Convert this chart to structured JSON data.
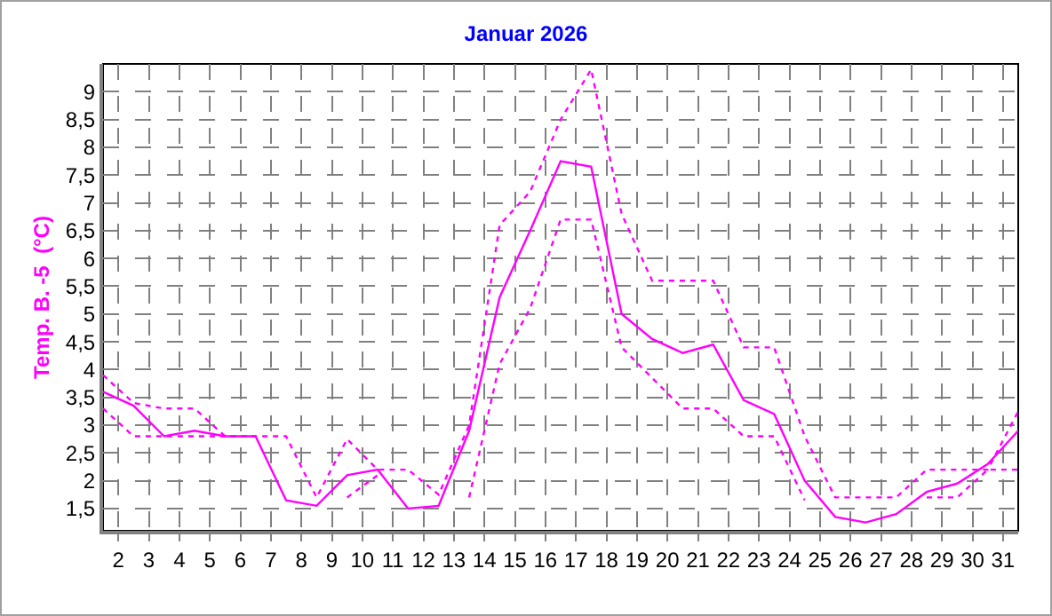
{
  "chart_data": {
    "type": "line",
    "title": "Januar 2026",
    "ylabel": "Temp. B. -5  (°C)",
    "x": [
      1.5,
      2.5,
      3.5,
      4.5,
      5.5,
      6.5,
      7.5,
      8.5,
      9.5,
      10.5,
      11.5,
      12.5,
      13.5,
      14.5,
      15.5,
      16.5,
      17.5,
      18.5,
      19.5,
      20.5,
      21.5,
      22.5,
      23.5,
      24.5,
      25.5,
      26.5,
      27.5,
      28.5,
      29.5,
      30.5,
      31.5
    ],
    "series": [
      {
        "color": "#ff00ff",
        "line_style": "dotted",
        "values": [
          3.9,
          3.4,
          3.3,
          3.3,
          2.8,
          2.8,
          2.8,
          1.7,
          2.75,
          2.2,
          2.2,
          1.75,
          3.0,
          6.6,
          7.2,
          8.5,
          9.4,
          6.8,
          5.6,
          5.6,
          5.6,
          4.4,
          4.4,
          2.8,
          1.7,
          1.7,
          1.7,
          2.2,
          2.2,
          2.2,
          3.25
        ]
      },
      {
        "color": "#ff00ff",
        "line_style": "solid",
        "values": [
          3.6,
          3.35,
          2.8,
          2.9,
          2.8,
          2.8,
          1.65,
          1.55,
          2.1,
          2.2,
          1.5,
          1.55,
          2.9,
          5.3,
          6.5,
          7.75,
          7.65,
          5.0,
          4.55,
          4.3,
          4.45,
          3.45,
          3.2,
          2.0,
          1.35,
          1.25,
          1.4,
          1.8,
          1.95,
          2.3,
          2.9
        ]
      },
      {
        "color": "#ff00ff",
        "line_style": "dotted",
        "values": [
          3.3,
          2.8,
          2.8,
          2.8,
          2.8,
          2.8,
          null,
          null,
          1.7,
          2.1,
          null,
          null,
          1.7,
          4.1,
          5.1,
          6.7,
          6.7,
          4.4,
          3.85,
          3.3,
          3.3,
          2.8,
          2.8,
          1.65,
          null,
          null,
          null,
          1.7,
          1.7,
          2.2,
          2.2
        ]
      }
    ],
    "xlim": [
      1.5,
      31.5
    ],
    "xticks": [
      2,
      3,
      4,
      5,
      6,
      7,
      8,
      9,
      10,
      11,
      12,
      13,
      14,
      15,
      16,
      17,
      18,
      19,
      20,
      21,
      22,
      23,
      24,
      25,
      26,
      27,
      28,
      29,
      30,
      31
    ],
    "ylim": [
      1.1,
      9.5
    ],
    "yticks": [
      {
        "value": 1.5,
        "label": "1,5"
      },
      2,
      {
        "value": 2.5,
        "label": "2,5"
      },
      3,
      {
        "value": 3.5,
        "label": "3,5"
      },
      4,
      {
        "value": 4.5,
        "label": "4,5"
      },
      5,
      {
        "value": 5.5,
        "label": "5,5"
      },
      6,
      {
        "value": 6.5,
        "label": "6,5"
      },
      7,
      {
        "value": 7.5,
        "label": "7,5"
      },
      8,
      {
        "value": 8.5,
        "label": "8,5"
      },
      9
    ],
    "grid": true,
    "marker": "none"
  }
}
